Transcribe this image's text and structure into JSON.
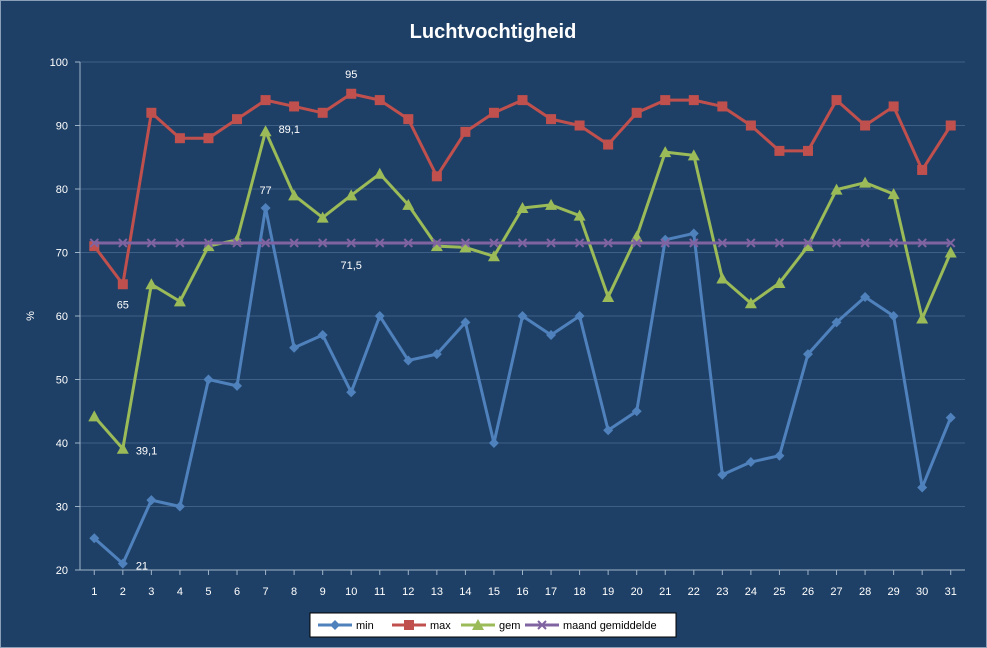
{
  "chart_data": {
    "type": "line",
    "title": "Luchtvochtigheid",
    "ylabel": "%",
    "xlabel": "",
    "ylim": [
      20,
      100
    ],
    "yticks": [
      20,
      30,
      40,
      50,
      60,
      70,
      80,
      90,
      100
    ],
    "x": [
      1,
      2,
      3,
      4,
      5,
      6,
      7,
      8,
      9,
      10,
      11,
      12,
      13,
      14,
      15,
      16,
      17,
      18,
      19,
      20,
      21,
      22,
      23,
      24,
      25,
      26,
      27,
      28,
      29,
      30,
      31
    ],
    "legend_position": "bottom",
    "series": [
      {
        "name": "min",
        "color": "#4f81bd",
        "marker": "diamond",
        "values": [
          25,
          21,
          31,
          30,
          50,
          49,
          77,
          55,
          57,
          48,
          60,
          53,
          54,
          59,
          40,
          60,
          57,
          60,
          42,
          45,
          72,
          73,
          35,
          37,
          38,
          54,
          59,
          63,
          60,
          33,
          44
        ]
      },
      {
        "name": "max",
        "color": "#c0504d",
        "marker": "square",
        "values": [
          71,
          65,
          92,
          88,
          88,
          91,
          94,
          93,
          92,
          95,
          94,
          91,
          82,
          89,
          92,
          94,
          91,
          90,
          87,
          92,
          94,
          94,
          93,
          90,
          86,
          86,
          94,
          90,
          93,
          83,
          90
        ]
      },
      {
        "name": "gem",
        "color": "#9bbb59",
        "marker": "triangle",
        "values": [
          44.2,
          39.1,
          65,
          62.3,
          71,
          72,
          89.1,
          79,
          75.5,
          79,
          82.4,
          77.5,
          71,
          70.8,
          69.4,
          77,
          77.5,
          75.8,
          63,
          72.5,
          85.8,
          85.3,
          65.9,
          62,
          65.2,
          71,
          79.9,
          81,
          79.2,
          59.6,
          70
        ]
      },
      {
        "name": "maand gemiddelde",
        "color": "#8064a2",
        "marker": "x",
        "values": [
          71.5,
          71.5,
          71.5,
          71.5,
          71.5,
          71.5,
          71.5,
          71.5,
          71.5,
          71.5,
          71.5,
          71.5,
          71.5,
          71.5,
          71.5,
          71.5,
          71.5,
          71.5,
          71.5,
          71.5,
          71.5,
          71.5,
          71.5,
          71.5,
          71.5,
          71.5,
          71.5,
          71.5,
          71.5,
          71.5,
          71.5
        ]
      }
    ],
    "data_labels": [
      {
        "series": "min",
        "x": 2,
        "text": "21"
      },
      {
        "series": "min",
        "x": 7,
        "text": "77"
      },
      {
        "series": "max",
        "x": 2,
        "text": "65"
      },
      {
        "series": "max",
        "x": 10,
        "text": "95"
      },
      {
        "series": "gem",
        "x": 2,
        "text": "39,1"
      },
      {
        "series": "gem",
        "x": 7,
        "text": "89,1"
      },
      {
        "series": "maand gemiddelde",
        "x": 10,
        "text": "71,5"
      }
    ]
  }
}
